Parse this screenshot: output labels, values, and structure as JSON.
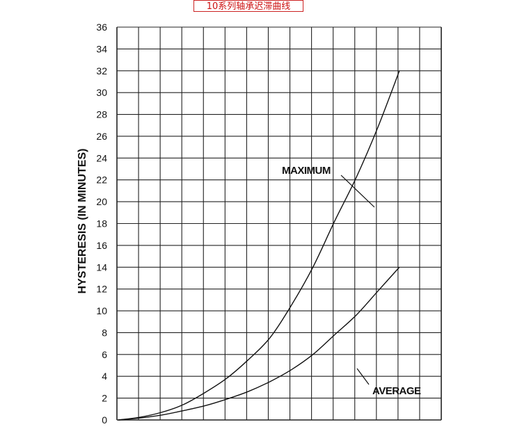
{
  "title_box": "10系列轴承迟滞曲线",
  "chart_data": {
    "type": "line",
    "title": "10系列轴承迟滞曲线",
    "xlabel": "",
    "ylabel": "HYSTERESIS (IN MINUTES)",
    "ylim": [
      0,
      36
    ],
    "yticks": [
      0,
      2,
      4,
      6,
      8,
      10,
      12,
      14,
      16,
      18,
      20,
      22,
      24,
      26,
      28,
      30,
      32,
      34,
      36
    ],
    "grid": true,
    "series": [
      {
        "name": "MAXIMUM",
        "values": [
          [
            0,
            0
          ],
          [
            1,
            0.25
          ],
          [
            2,
            0.7
          ],
          [
            3,
            1.4
          ],
          [
            4,
            2.5
          ],
          [
            5,
            3.8
          ],
          [
            6,
            5.5
          ],
          [
            7,
            7.5
          ],
          [
            8,
            10.5
          ],
          [
            9,
            14.0
          ],
          [
            10,
            18.2
          ],
          [
            11,
            22.2
          ],
          [
            12,
            26.8
          ],
          [
            13,
            32.0
          ]
        ]
      },
      {
        "name": "AVERAGE",
        "values": [
          [
            0,
            0
          ],
          [
            1,
            0.18
          ],
          [
            2,
            0.45
          ],
          [
            3,
            0.85
          ],
          [
            4,
            1.3
          ],
          [
            5,
            1.9
          ],
          [
            6,
            2.6
          ],
          [
            7,
            3.5
          ],
          [
            8,
            4.6
          ],
          [
            9,
            6.0
          ],
          [
            10,
            7.8
          ],
          [
            11,
            9.6
          ],
          [
            12,
            11.8
          ],
          [
            13,
            14.0
          ]
        ]
      }
    ],
    "annotations": [
      "MAXIMUM",
      "AVERAGE"
    ]
  }
}
